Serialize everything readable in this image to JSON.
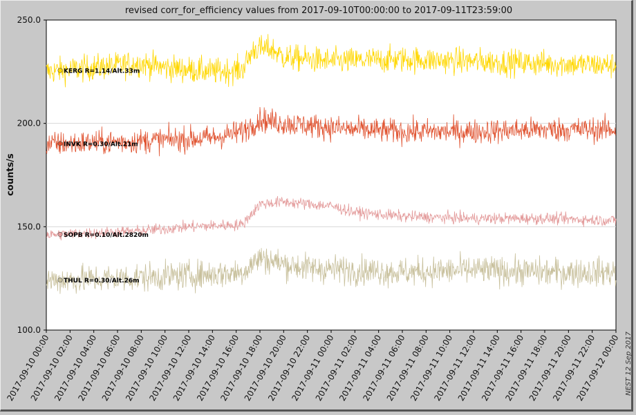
{
  "chart_data": {
    "type": "line",
    "title": "revised corr_for_efficiency values from 2017-09-10T00:00:00 to 2017-09-11T23:59:00",
    "ylabel": "counts/s",
    "xlabel": "",
    "ylim": [
      100,
      250
    ],
    "yticks": [
      "100.0",
      "150.0",
      "200.0",
      "250.0"
    ],
    "xtick_labels": [
      "2017-09-10 00:00",
      "2017-09-10 02:00",
      "2017-09-10 04:00",
      "2017-09-10 06:00",
      "2017-09-10 08:00",
      "2017-09-10 10:00",
      "2017-09-10 12:00",
      "2017-09-10 14:00",
      "2017-09-10 16:00",
      "2017-09-10 18:00",
      "2017-09-10 20:00",
      "2017-09-10 22:00",
      "2017-09-11 00:00",
      "2017-09-11 02:00",
      "2017-09-11 04:00",
      "2017-09-11 06:00",
      "2017-09-11 08:00",
      "2017-09-11 10:00",
      "2017-09-11 12:00",
      "2017-09-11 14:00",
      "2017-09-11 16:00",
      "2017-09-11 18:00",
      "2017-09-11 20:00",
      "2017-09-11 22:00",
      "2017-09-12 00:00"
    ],
    "x_unit": "hours since 2017-09-10 00:00",
    "grid": "horizontal",
    "legend_placement": "inline-left",
    "credit": "NEST   12 Sep 2017",
    "series": [
      {
        "name": "KERG R=1.14/Alt.33m",
        "color": "#ffd700",
        "noise": 3.2,
        "profile": [
          [
            0,
            225
          ],
          [
            4,
            227
          ],
          [
            8,
            229
          ],
          [
            10,
            227
          ],
          [
            14,
            225
          ],
          [
            16.5,
            226
          ],
          [
            17.5,
            236
          ],
          [
            19,
            236
          ],
          [
            20,
            232
          ],
          [
            22,
            231
          ],
          [
            24,
            230
          ],
          [
            30,
            231
          ],
          [
            36,
            230
          ],
          [
            42,
            229
          ],
          [
            48,
            228
          ]
        ]
      },
      {
        "name": "INVK R=0.30/Alt.21m",
        "color": "#e0522f",
        "noise": 3.0,
        "profile": [
          [
            0,
            190
          ],
          [
            6,
            191
          ],
          [
            10,
            192
          ],
          [
            14,
            193
          ],
          [
            16.5,
            196
          ],
          [
            18,
            202
          ],
          [
            20,
            200
          ],
          [
            22,
            199
          ],
          [
            26,
            197
          ],
          [
            30,
            196
          ],
          [
            36,
            196
          ],
          [
            42,
            197
          ],
          [
            48,
            197
          ]
        ]
      },
      {
        "name": "SOPB R=0.10/Alt.2820m",
        "color": "#e39a9a",
        "noise": 1.4,
        "profile": [
          [
            0,
            146
          ],
          [
            4,
            147
          ],
          [
            8,
            148
          ],
          [
            12,
            150
          ],
          [
            16.5,
            151
          ],
          [
            18,
            161
          ],
          [
            20,
            162
          ],
          [
            22,
            161
          ],
          [
            24,
            160
          ],
          [
            26,
            157
          ],
          [
            30,
            155
          ],
          [
            36,
            154
          ],
          [
            42,
            154
          ],
          [
            48,
            153
          ]
        ]
      },
      {
        "name": "THUL R=0.30/Alt.26m",
        "color": "#c8c09c",
        "noise": 3.5,
        "profile": [
          [
            0,
            124
          ],
          [
            6,
            125
          ],
          [
            10,
            126
          ],
          [
            14,
            127
          ],
          [
            16.5,
            128
          ],
          [
            18,
            135
          ],
          [
            20,
            132
          ],
          [
            22,
            130
          ],
          [
            26,
            129
          ],
          [
            30,
            128
          ],
          [
            36,
            129
          ],
          [
            42,
            128
          ],
          [
            48,
            128
          ]
        ]
      }
    ]
  }
}
